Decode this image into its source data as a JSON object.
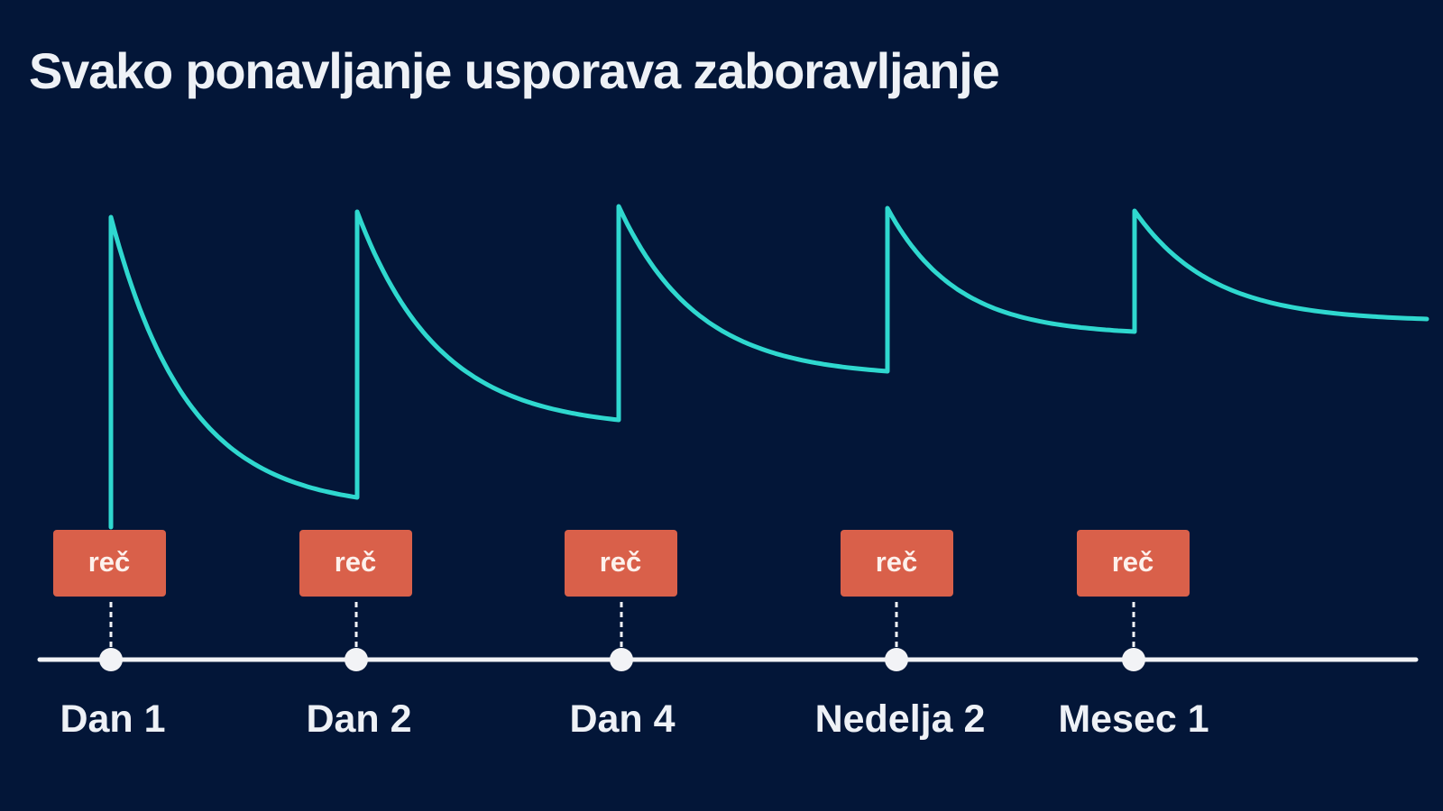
{
  "title": "Svako ponavljanje usporava zaboravljanje",
  "colors": {
    "background": "#031638",
    "curve": "#2fd8cf",
    "review_box": "#d9604a",
    "timeline": "#f2f3f6"
  },
  "reviews": [
    {
      "word": "reč",
      "time_label": "Dan 1"
    },
    {
      "word": "reč",
      "time_label": "Dan 2"
    },
    {
      "word": "reč",
      "time_label": "Dan 4"
    },
    {
      "word": "reč",
      "time_label": "Nedelja 2"
    },
    {
      "word": "reč",
      "time_label": "Mesec 1"
    }
  ]
}
